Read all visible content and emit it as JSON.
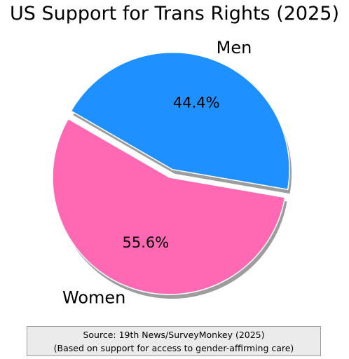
{
  "chart_data": {
    "type": "pie",
    "title": "US Support for Trans Rights (2025)",
    "slices": [
      {
        "label": "Men",
        "value": 44.4,
        "value_label": "44.4%",
        "color": "#1e90ff",
        "exploded": true
      },
      {
        "label": "Women",
        "value": 55.6,
        "value_label": "55.6%",
        "color": "#ff69b4",
        "exploded": false
      }
    ],
    "shadow": true,
    "annotation": {
      "line1": "Source: 19th News/SurveyMonkey (2025)",
      "line2": "(Based on support for access to gender-affirming care)",
      "background": "#ebebeb"
    }
  }
}
